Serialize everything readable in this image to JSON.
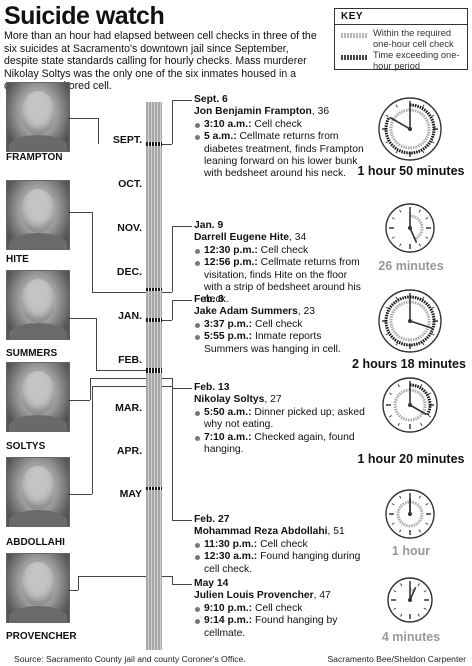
{
  "title": "Suicide watch",
  "intro": "More than an hour had elapsed between cell checks in three of the six suicides at Sacramento's downtown jail since September, despite state standards calling for hourly checks. Mass murderer Nikolay Soltys was the only one of the six inmates housed in a camera-monitored cell.",
  "key": {
    "title": "KEY",
    "within_label": "Within the required one-hour cell check",
    "exceeding_label": "Time exceeding one-hour period"
  },
  "months": [
    "SEPT.",
    "OCT.",
    "NOV.",
    "DEC.",
    "JAN.",
    "FEB.",
    "MAR.",
    "APR.",
    "MAY"
  ],
  "inmates": [
    {
      "photo_label": "FRAMPTON",
      "date": "Sept. 6",
      "name": "Jon Benjamin Frampton",
      "age": "36",
      "entries": [
        {
          "time": "3:10 a.m.:",
          "text": "Cell check"
        },
        {
          "time": "5 a.m.:",
          "text": "Cellmate returns from diabetes treatment, finds Frampton leaning forward on his lower bunk with bedsheet around his neck."
        }
      ],
      "duration": "1 hour 50 minutes",
      "minutes": 110
    },
    {
      "photo_label": "HITE",
      "date": "Jan. 9",
      "name": "Darrell Eugene Hite",
      "age": "34",
      "entries": [
        {
          "time": "12:30 p.m.:",
          "text": "Cell check"
        },
        {
          "time": "12:56 p.m.:",
          "text": "Cellmate returns from visitation, finds Hite on the floor with a strip of bedsheet around his neck."
        }
      ],
      "duration": "26 minutes",
      "minutes": 26
    },
    {
      "photo_label": "SUMMERS",
      "date": "Feb. 8",
      "name": "Jake Adam Summers",
      "age": "23",
      "entries": [
        {
          "time": "3:37 p.m.:",
          "text": "Cell check"
        },
        {
          "time": "5:55 p.m.:",
          "text": "Inmate reports Summers was hanging in cell."
        }
      ],
      "duration": "2 hours 18 minutes",
      "minutes": 138
    },
    {
      "photo_label": "SOLTYS",
      "date": "Feb. 13",
      "name": "Nikolay Soltys",
      "age": "27",
      "entries": [
        {
          "time": "5:50 a.m.:",
          "text": "Dinner picked up; asked why not eating."
        },
        {
          "time": "7:10 a.m.:",
          "text": "Checked again, found hanging."
        }
      ],
      "duration": "1 hour 20 minutes",
      "minutes": 80
    },
    {
      "photo_label": "ABDOLLAHI",
      "date": "Feb. 27",
      "name": "Mohammad Reza Abdollahi",
      "age": "51",
      "entries": [
        {
          "time": "11:30 p.m.:",
          "text": "Cell check"
        },
        {
          "time": "12:30 a.m.:",
          "text": "Found hanging during cell check."
        }
      ],
      "duration": "1 hour",
      "minutes": 60
    },
    {
      "photo_label": "PROVENCHER",
      "date": "May 14",
      "name": "Julien Louis Provencher",
      "age": "47",
      "entries": [
        {
          "time": "9:10 p.m.:",
          "text": "Cell check"
        },
        {
          "time": "9:14 p.m.:",
          "text": "Found hanging by cellmate."
        }
      ],
      "duration": "4 minutes",
      "minutes": 4
    }
  ],
  "source": "Source: Sacramento County jail and county Coroner's Office.",
  "credit": "Sacramento Bee/Sheldon Carpenter"
}
